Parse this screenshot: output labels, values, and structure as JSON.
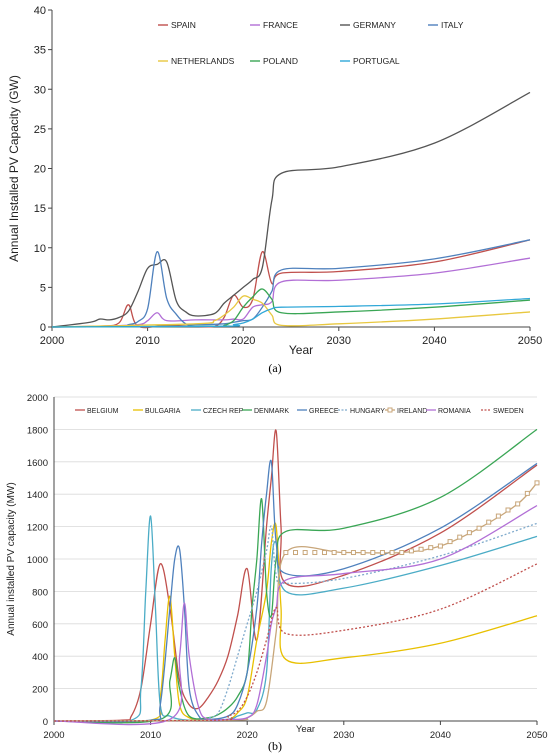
{
  "chart_data": [
    {
      "type": "line",
      "caption": "(a)",
      "xlabel": "Year",
      "ylabel": "Annual Installed PV Capacity (GW)",
      "xlim": [
        2000,
        2050
      ],
      "ylim": [
        0,
        40
      ],
      "xticks": [
        "2000",
        "2010",
        "2020",
        "2030",
        "2040",
        "2050"
      ],
      "yticks": [
        "0",
        "5",
        "10",
        "15",
        "20",
        "25",
        "30",
        "35",
        "40"
      ],
      "grid": false,
      "legend_position": "top-right",
      "series": [
        {
          "name": "SPAIN",
          "color": "#c0504d",
          "dash": "solid",
          "x": [
            2000,
            2005,
            2007,
            2008,
            2009,
            2012,
            2015,
            2017,
            2018,
            2019,
            2020,
            2021,
            2022,
            2023,
            2024,
            2030,
            2040,
            2050
          ],
          "y": [
            0,
            0.1,
            0.5,
            2.8,
            0.1,
            0.2,
            0.1,
            0.1,
            1.2,
            4.0,
            2.5,
            3.5,
            9.5,
            5.5,
            6.8,
            7.0,
            8.2,
            11.0
          ]
        },
        {
          "name": "FRANCE",
          "color": "#b26fd6",
          "dash": "solid",
          "x": [
            2000,
            2005,
            2009,
            2010,
            2011,
            2012,
            2015,
            2018,
            2019,
            2020,
            2021,
            2022,
            2023,
            2024,
            2030,
            2040,
            2050
          ],
          "y": [
            0,
            0.1,
            0.3,
            0.8,
            1.8,
            0.8,
            0.9,
            0.9,
            1.0,
            1.0,
            2.5,
            2.8,
            3.2,
            5.7,
            5.9,
            6.8,
            8.7
          ]
        },
        {
          "name": "GERMANY",
          "color": "#555555",
          "dash": "solid",
          "x": [
            2000,
            2004,
            2005,
            2006,
            2007,
            2008,
            2009,
            2010,
            2011,
            2012,
            2013,
            2014,
            2015,
            2017,
            2018,
            2019,
            2020,
            2021,
            2022,
            2023,
            2024,
            2030,
            2040,
            2050
          ],
          "y": [
            0,
            0.6,
            1.0,
            0.9,
            1.2,
            2.0,
            4.5,
            7.4,
            7.9,
            8.2,
            3.3,
            1.9,
            1.4,
            1.7,
            3.0,
            4.0,
            5.0,
            6.0,
            7.5,
            16.0,
            19.4,
            20.2,
            23.2,
            29.6
          ]
        },
        {
          "name": "ITALY",
          "color": "#4f81bd",
          "dash": "solid",
          "x": [
            2000,
            2007,
            2008,
            2009,
            2010,
            2011,
            2012,
            2013,
            2014,
            2015,
            2018,
            2019,
            2020,
            2021,
            2022,
            2023,
            2024,
            2030,
            2040,
            2050
          ],
          "y": [
            0,
            0.1,
            0.3,
            0.7,
            2.3,
            9.5,
            3.6,
            1.6,
            0.4,
            0.3,
            0.4,
            0.6,
            0.8,
            1.0,
            2.5,
            4.5,
            7.2,
            7.4,
            8.6,
            11.0
          ]
        },
        {
          "name": "NETHERLANDS",
          "color": "#e8c840",
          "dash": "solid",
          "x": [
            2000,
            2015,
            2017,
            2018,
            2019,
            2020,
            2021,
            2022,
            2023,
            2024,
            2030,
            2040,
            2050
          ],
          "y": [
            0,
            0.4,
            0.8,
            1.5,
            2.5,
            3.9,
            3.5,
            3.0,
            1.5,
            0.2,
            0.4,
            1.0,
            1.9
          ]
        },
        {
          "name": "POLAND",
          "color": "#3aa655",
          "dash": "solid",
          "x": [
            2000,
            2017,
            2018,
            2019,
            2020,
            2021,
            2022,
            2023,
            2024,
            2030,
            2040,
            2050
          ],
          "y": [
            0,
            0.1,
            0.2,
            0.8,
            2.5,
            3.8,
            4.8,
            3.5,
            1.8,
            1.9,
            2.5,
            3.4
          ]
        },
        {
          "name": "PORTUGAL",
          "color": "#31a8d8",
          "dash": "solid",
          "x": [
            2000,
            2018,
            2019,
            2020,
            2021,
            2022,
            2023,
            2024,
            2030,
            2040,
            2050
          ],
          "y": [
            0,
            0.1,
            0.3,
            0.5,
            1.0,
            1.8,
            2.3,
            2.5,
            2.6,
            2.9,
            3.6
          ]
        }
      ]
    },
    {
      "type": "line",
      "caption": "(b)",
      "xlabel": "Year",
      "ylabel": "Annual installed PV capacity (MW)",
      "xlim": [
        2000,
        2050
      ],
      "ylim": [
        0,
        2000
      ],
      "xticks": [
        "2000",
        "2010",
        "2020",
        "2030",
        "2040",
        "2050"
      ],
      "yticks": [
        "0",
        "200",
        "400",
        "600",
        "800",
        "1000",
        "1200",
        "1400",
        "1600",
        "1800",
        "2000"
      ],
      "grid": true,
      "legend_position": "top",
      "series": [
        {
          "name": "BELGIUM",
          "color": "#c0504d",
          "dash": "solid",
          "x": [
            2000,
            2007,
            2008,
            2009,
            2010,
            2011,
            2012,
            2013,
            2014,
            2015,
            2016,
            2017,
            2018,
            2019,
            2020,
            2021,
            2022,
            2022.5,
            2023,
            2023.5,
            2024,
            2030,
            2040,
            2050
          ],
          "y": [
            0,
            5,
            30,
            200,
            600,
            970,
            700,
            250,
            100,
            80,
            150,
            250,
            400,
            650,
            940,
            500,
            1200,
            1500,
            1790,
            1200,
            850,
            900,
            1160,
            1580
          ]
        },
        {
          "name": "BULGARIA",
          "color": "#e8c000",
          "dash": "solid",
          "x": [
            2000,
            2010,
            2011,
            2011.5,
            2012,
            2012.5,
            2013,
            2014,
            2016,
            2018,
            2019,
            2020,
            2021,
            2022,
            2022.5,
            2023,
            2023.5,
            2024,
            2030,
            2040,
            2050
          ],
          "y": [
            0,
            5,
            150,
            500,
            770,
            400,
            100,
            20,
            5,
            10,
            50,
            150,
            500,
            800,
            1100,
            1200,
            700,
            380,
            390,
            480,
            650
          ]
        },
        {
          "name": "CZECH REP",
          "color": "#4bacc6",
          "dash": "solid",
          "x": [
            2000,
            2008,
            2009,
            2009.5,
            2010,
            2010.5,
            2011,
            2012,
            2014,
            2018,
            2019,
            2020,
            2021,
            2022,
            2022.5,
            2023,
            2024,
            2030,
            2040,
            2050
          ],
          "y": [
            0,
            5,
            200,
            800,
            1265,
            700,
            100,
            30,
            5,
            10,
            30,
            50,
            70,
            300,
            950,
            1100,
            800,
            820,
            960,
            1140
          ]
        },
        {
          "name": "DENMARK",
          "color": "#3aa655",
          "dash": "solid",
          "x": [
            2000,
            2011,
            2012,
            2012.5,
            2013,
            2014,
            2016,
            2017,
            2018,
            2019,
            2020,
            2020.5,
            2021,
            2021.5,
            2022,
            2022.5,
            2023,
            2024,
            2030,
            2040,
            2050
          ],
          "y": [
            0,
            10,
            250,
            390,
            200,
            30,
            20,
            40,
            80,
            150,
            300,
            700,
            1000,
            1370,
            800,
            650,
            1000,
            1170,
            1190,
            1380,
            1800
          ]
        },
        {
          "name": "GREECE",
          "color": "#4f81bd",
          "dash": "solid",
          "x": [
            2000,
            2010,
            2011,
            2012,
            2012.5,
            2013,
            2013.5,
            2014,
            2015,
            2016,
            2018,
            2019,
            2020,
            2021,
            2021.5,
            2022,
            2022.5,
            2023,
            2024,
            2030,
            2040,
            2050
          ],
          "y": [
            0,
            5,
            100,
            700,
            1000,
            1060,
            700,
            200,
            30,
            10,
            30,
            100,
            300,
            700,
            1100,
            1400,
            1600,
            1100,
            910,
            940,
            1190,
            1590
          ]
        },
        {
          "name": "HUNGARY",
          "color": "#7faacc",
          "dash": "dotted",
          "x": [
            2000,
            2015,
            2016,
            2017,
            2018,
            2019,
            2020,
            2021,
            2022,
            2022.5,
            2023,
            2024,
            2030,
            2040,
            2050
          ],
          "y": [
            0,
            5,
            20,
            50,
            200,
            400,
            600,
            800,
            1050,
            1200,
            900,
            850,
            880,
            1020,
            1220
          ]
        },
        {
          "name": "IRELAND",
          "color": "#c8a67a",
          "dash": "marker",
          "x": [
            2000,
            2018,
            2020,
            2021,
            2022,
            2023,
            2024,
            2030,
            2036,
            2040,
            2044,
            2048,
            2050
          ],
          "y": [
            0,
            5,
            20,
            60,
            120,
            550,
            1040,
            1040,
            1040,
            1080,
            1190,
            1340,
            1470
          ]
        },
        {
          "name": "ROMANIA",
          "color": "#b26fd6",
          "dash": "solid",
          "x": [
            2000,
            2012,
            2013,
            2013.5,
            2014,
            2015,
            2016,
            2018,
            2020,
            2021,
            2022,
            2022.5,
            2023,
            2024,
            2030,
            2040,
            2050
          ],
          "y": [
            0,
            10,
            400,
            730,
            400,
            80,
            10,
            10,
            20,
            100,
            400,
            600,
            700,
            870,
            910,
            1000,
            1330
          ]
        },
        {
          "name": "SWEDEN",
          "color": "#c0504d",
          "dash": "dotted",
          "x": [
            2000,
            2017,
            2018,
            2019,
            2020,
            2021,
            2022,
            2023,
            2024,
            2030,
            2040,
            2050
          ],
          "y": [
            0,
            5,
            30,
            60,
            150,
            300,
            500,
            700,
            540,
            560,
            690,
            970
          ]
        }
      ]
    }
  ]
}
